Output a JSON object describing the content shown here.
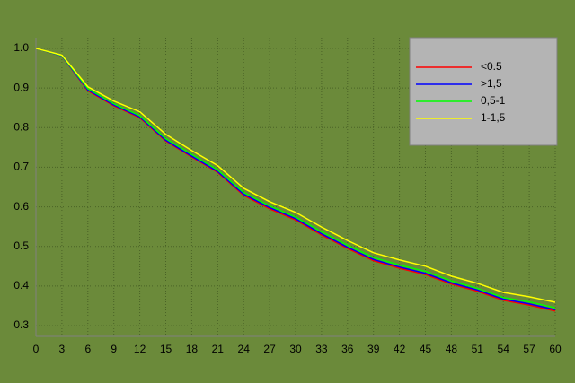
{
  "chart_data": {
    "type": "line",
    "x": [
      0,
      3,
      6,
      9,
      12,
      15,
      18,
      21,
      24,
      27,
      30,
      33,
      36,
      39,
      42,
      45,
      48,
      51,
      54,
      57,
      60
    ],
    "series": [
      {
        "name": "<0.5",
        "color": "#ff0000",
        "values": [
          1.0,
          0.981,
          0.893,
          0.855,
          0.825,
          0.766,
          0.726,
          0.687,
          0.629,
          0.595,
          0.567,
          0.529,
          0.495,
          0.464,
          0.445,
          0.429,
          0.405,
          0.387,
          0.364,
          0.352,
          0.337
        ]
      },
      {
        "name": ">1,5",
        "color": "#0000ff",
        "values": [
          1.0,
          0.981,
          0.895,
          0.857,
          0.827,
          0.768,
          0.728,
          0.689,
          0.632,
          0.598,
          0.57,
          0.532,
          0.498,
          0.467,
          0.448,
          0.432,
          0.408,
          0.39,
          0.367,
          0.355,
          0.34
        ]
      },
      {
        "name": "0,5-1",
        "color": "#00ff00",
        "values": [
          1.0,
          0.982,
          0.898,
          0.86,
          0.83,
          0.772,
          0.732,
          0.693,
          0.636,
          0.602,
          0.574,
          0.537,
          0.503,
          0.472,
          0.453,
          0.437,
          0.413,
          0.394,
          0.371,
          0.36,
          0.345
        ]
      },
      {
        "name": "1-1,5",
        "color": "#ffff00",
        "values": [
          1.0,
          0.983,
          0.903,
          0.867,
          0.84,
          0.783,
          0.742,
          0.704,
          0.647,
          0.613,
          0.586,
          0.549,
          0.515,
          0.484,
          0.466,
          0.45,
          0.425,
          0.407,
          0.384,
          0.373,
          0.359
        ]
      }
    ],
    "xlim": [
      0,
      60
    ],
    "xticks": [
      0,
      3,
      6,
      9,
      12,
      15,
      18,
      21,
      24,
      27,
      30,
      33,
      36,
      39,
      42,
      45,
      48,
      51,
      54,
      57,
      60
    ],
    "ylim": [
      0.273,
      1.027
    ],
    "yticks": [
      0.3,
      0.4,
      0.5,
      0.6,
      0.7,
      0.8,
      0.9,
      {
        "value": 1,
        "label": "1.0"
      }
    ],
    "grid": true,
    "legend": "upper right"
  }
}
